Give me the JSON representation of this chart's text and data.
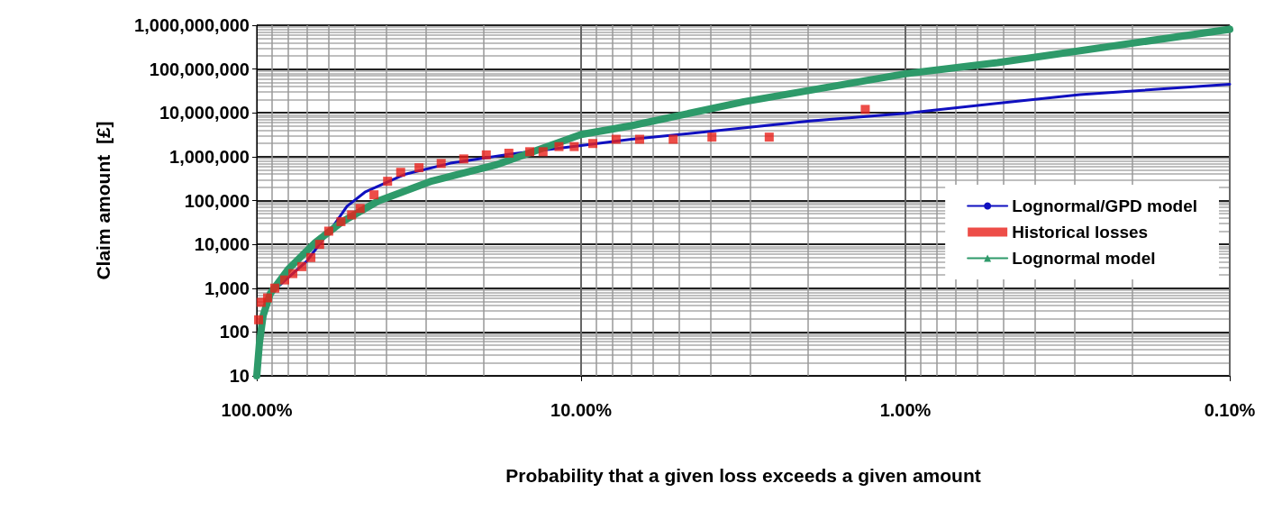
{
  "chart_data": {
    "type": "line",
    "xlabel": "Probability that a given loss exceeds a given amount",
    "ylabel": "Claim amount  [£]",
    "log": "xy",
    "xlim": [
      100,
      0.1
    ],
    "xticks": [
      {
        "value": 100,
        "label": "100.00%"
      },
      {
        "value": 10,
        "label": "10.00%"
      },
      {
        "value": 1,
        "label": "1.00%"
      },
      {
        "value": 0.1,
        "label": "0.10%"
      }
    ],
    "ylim": [
      10,
      1000000000
    ],
    "yticks": [
      {
        "value": 10,
        "label": "10"
      },
      {
        "value": 100,
        "label": "100"
      },
      {
        "value": 1000,
        "label": "1,000"
      },
      {
        "value": 10000,
        "label": "10,000"
      },
      {
        "value": 100000,
        "label": "100,000"
      },
      {
        "value": 1000000,
        "label": "1,000,000"
      },
      {
        "value": 10000000,
        "label": "10,000,000"
      },
      {
        "value": 100000000,
        "label": "100,000,000"
      },
      {
        "value": 1000000000,
        "label": "1,000,000,000"
      }
    ],
    "grid": true,
    "legend": "right",
    "series": [
      {
        "name": "Lognormal/GPD model",
        "marker": "none",
        "color": "#1010c0",
        "x": [
          98.7,
          90.8,
          70.4,
          58.1,
          52.7,
          46.4,
          34.8,
          25.3,
          17.2,
          10,
          7.0,
          3.7,
          1.97,
          1.0,
          0.54,
          0.29,
          0.1
        ],
        "values": [
          57,
          760,
          4000,
          26000,
          74000,
          155000,
          400000,
          710000,
          1100000,
          1800000,
          2500000,
          4000000,
          6500000,
          9800000,
          16000000,
          26000000,
          45000000
        ]
      },
      {
        "name": "Historical losses",
        "type": "scatter",
        "marker": "square",
        "color": "#e8201a",
        "x": [
          98.7,
          96.9,
          92.6,
          88,
          82,
          77.4,
          72.6,
          68.1,
          64,
          60,
          55,
          51,
          48,
          43.5,
          39.5,
          36,
          31.6,
          27,
          23,
          19.6,
          16.7,
          14.4,
          13.1,
          11.7,
          10.5,
          9.2,
          7.8,
          6.6,
          5.2,
          3.95,
          2.63,
          1.33
        ],
        "values": [
          190,
          475,
          600,
          1000,
          1540,
          2150,
          3100,
          5000,
          10000,
          20000,
          33000,
          47000,
          66000,
          135000,
          275000,
          440000,
          560000,
          700000,
          890000,
          1100000,
          1200000,
          1300000,
          1300000,
          1700000,
          1700000,
          2000000,
          2500000,
          2500000,
          2500000,
          2800000,
          2800000,
          12000000
        ]
      },
      {
        "name": "Lognormal model",
        "marker": "triangle",
        "color": "#2e9a6a",
        "x": [
          100,
          98.1,
          95.6,
          90.8,
          80,
          66,
          54.5,
          42.2,
          28.8,
          18.3,
          10,
          7.0,
          3.15,
          1.0,
          0.52,
          0.1
        ],
        "values": [
          10,
          57,
          235,
          760,
          2700,
          11000,
          33000,
          98000,
          280000,
          650000,
          3200000,
          5100000,
          18000000,
          78000000,
          140000000,
          810000000
        ]
      }
    ]
  }
}
